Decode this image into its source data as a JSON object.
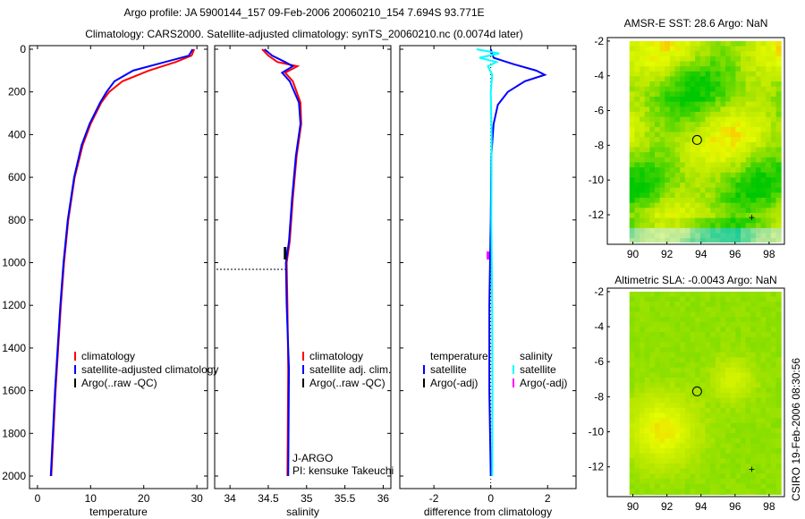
{
  "title_line1": "Argo profile: JA 5900144_157 09-Feb-2006 20060210_154 7.694S 93.771E",
  "title_line2": "Climatology: CARS2000. Satellite-adjusted climatology: synTS_20060210.nc (0.0074d later)",
  "side_label": "CSIRO 19-Feb-2006 08:30:56",
  "chart_data": [
    {
      "type": "line",
      "xlabel": "temperature",
      "xlim": [
        -1.5,
        32
      ],
      "ylim": [
        0,
        2050
      ],
      "xticks": [
        0,
        10,
        20,
        30
      ],
      "yticks": [
        0,
        200,
        400,
        600,
        800,
        1000,
        1200,
        1400,
        1600,
        1800,
        2000
      ],
      "legend": [
        "climatology",
        "satellite-adjusted climatology",
        "Argo(..raw -QC)"
      ],
      "series": [
        {
          "name": "climatology",
          "color": "#ff0000",
          "depth": [
            0,
            30,
            60,
            100,
            150,
            200,
            250,
            350,
            450,
            600,
            800,
            1000,
            1200,
            1400,
            1600,
            1800,
            2000
          ],
          "values": [
            29.5,
            29,
            26,
            21,
            16,
            13.5,
            12,
            10,
            8.5,
            7,
            5.8,
            5,
            4.4,
            3.9,
            3.4,
            3,
            2.6
          ]
        },
        {
          "name": "satellite-adjusted climatology",
          "color": "#0000ff",
          "depth": [
            0,
            30,
            60,
            100,
            150,
            200,
            250,
            350,
            450,
            600,
            800,
            1000,
            1200,
            1400,
            1600,
            1800,
            2000
          ],
          "values": [
            29.2,
            28.5,
            24,
            18,
            14.5,
            13,
            11.8,
            9.8,
            8.3,
            6.9,
            5.7,
            4.9,
            4.3,
            3.8,
            3.3,
            2.9,
            2.5
          ]
        }
      ]
    },
    {
      "type": "line",
      "xlabel": "salinity",
      "xlim": [
        33.8,
        36.1
      ],
      "ylim": [
        0,
        2050
      ],
      "xticks": [
        34,
        34.5,
        35,
        35.5,
        36
      ],
      "legend": [
        "climatology",
        "satellite adj. clim.",
        "Argo(..raw -QC)"
      ],
      "annotation": [
        "J-ARGO",
        "PI: kensuke Takeuchi"
      ],
      "series": [
        {
          "name": "climatology",
          "color": "#ff0000",
          "depth": [
            0,
            30,
            60,
            80,
            110,
            150,
            250,
            350,
            500,
            700,
            900,
            1000,
            1200,
            1500,
            2000
          ],
          "values": [
            34.42,
            34.5,
            34.62,
            34.88,
            34.72,
            34.82,
            34.92,
            34.93,
            34.87,
            34.82,
            34.78,
            34.74,
            34.75,
            34.76,
            34.75
          ]
        },
        {
          "name": "satellite adj. clim.",
          "color": "#0000ff",
          "depth": [
            0,
            30,
            60,
            80,
            110,
            150,
            250,
            350,
            500,
            700,
            900,
            1000,
            1200,
            1500,
            2000
          ],
          "values": [
            34.45,
            34.55,
            34.72,
            34.82,
            34.68,
            34.78,
            34.9,
            34.92,
            34.86,
            34.81,
            34.77,
            34.73,
            34.74,
            34.77,
            34.76
          ]
        }
      ]
    },
    {
      "type": "line",
      "xlabel": "difference from climatology",
      "xlim": [
        -3.2,
        3
      ],
      "ylim": [
        0,
        2050
      ],
      "xticks": [
        -2,
        0,
        2
      ],
      "legend_temperature": {
        "title": "temperature",
        "items": [
          "satellite",
          "Argo(-adj)"
        ]
      },
      "legend_salinity": {
        "title": "salinity",
        "items": [
          "satellite",
          "Argo(-adj)"
        ]
      },
      "series": [
        {
          "name": "temperature satellite",
          "color": "#0000ff",
          "depth": [
            0,
            40,
            70,
            100,
            120,
            150,
            200,
            260,
            350,
            500,
            800,
            1200,
            1600,
            2000
          ],
          "values": [
            0,
            0.1,
            0.8,
            1.6,
            1.9,
            1.2,
            0.6,
            0.25,
            0.1,
            0.02,
            0,
            -0.05,
            -0.05,
            0
          ]
        },
        {
          "name": "salinity satellite",
          "color": "#00ffff",
          "depth": [
            0,
            20,
            40,
            60,
            80,
            120,
            200,
            400,
            800,
            1200,
            1600,
            2000
          ],
          "values": [
            -0.5,
            0.3,
            -0.4,
            0.2,
            -0.1,
            0.05,
            0,
            0.03,
            0.02,
            0.05,
            0.06,
            0.05
          ]
        }
      ]
    },
    {
      "type": "heatmap",
      "title": "AMSR-E SST: 28.6 Argo: NaN",
      "xlim": [
        88.5,
        98.9
      ],
      "ylim": [
        -13.7,
        -1.8
      ],
      "xticks": [
        90,
        92,
        94,
        96,
        98
      ],
      "yticks": [
        -2,
        -4,
        -6,
        -8,
        -10,
        -12
      ],
      "marker": {
        "lon": 93.771,
        "lat": -7.694
      }
    },
    {
      "type": "heatmap",
      "title": "Altimetric SLA: -0.0043 Argo: NaN",
      "xlim": [
        88.5,
        98.9
      ],
      "ylim": [
        -13.7,
        -1.8
      ],
      "xticks": [
        90,
        92,
        94,
        96,
        98
      ],
      "yticks": [
        -2,
        -4,
        -6,
        -8,
        -10,
        -12
      ],
      "marker": {
        "lon": 93.771,
        "lat": -7.694
      }
    }
  ]
}
